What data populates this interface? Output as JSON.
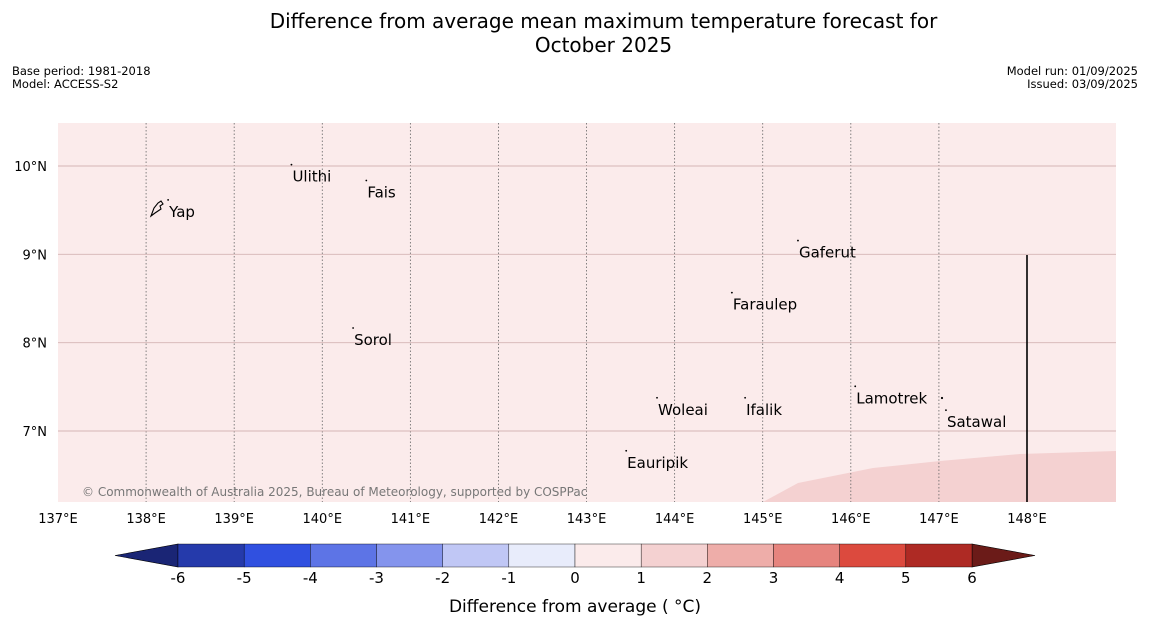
{
  "title_line1": "Difference from average mean maximum temperature forecast for",
  "title_line2": "October 2025",
  "meta_left": {
    "base_period": "Base period: 1981-2018",
    "model": "Model: ACCESS-S2"
  },
  "meta_right": {
    "model_run": "Model run: 01/09/2025",
    "issued": "Issued: 03/09/2025"
  },
  "map": {
    "x_ticks": [
      "137°E",
      "138°E",
      "139°E",
      "140°E",
      "141°E",
      "142°E",
      "143°E",
      "144°E",
      "145°E",
      "146°E",
      "147°E",
      "148°E"
    ],
    "x_tick_values": [
      137,
      138,
      139,
      140,
      141,
      142,
      143,
      144,
      145,
      146,
      147,
      148
    ],
    "y_ticks": [
      "10°N",
      "9°N",
      "8°N",
      "7°N"
    ],
    "y_tick_values": [
      10,
      9,
      8,
      7
    ],
    "lon_range": [
      137,
      149
    ],
    "lat_range": [
      6.2,
      10.5
    ],
    "places": [
      {
        "name": "Yap",
        "lon": 138.25,
        "lat": 9.48
      },
      {
        "name": "Ulithi",
        "lon": 139.65,
        "lat": 9.88
      },
      {
        "name": "Fais",
        "lon": 140.5,
        "lat": 9.7
      },
      {
        "name": "Gaferut",
        "lon": 145.4,
        "lat": 9.02
      },
      {
        "name": "Faraulep",
        "lon": 144.65,
        "lat": 8.43
      },
      {
        "name": "Sorol",
        "lon": 140.35,
        "lat": 8.03
      },
      {
        "name": "Lamotrek",
        "lon": 146.05,
        "lat": 7.37
      },
      {
        "name": "Satawal",
        "lon": 147.08,
        "lat": 7.1
      },
      {
        "name": "Woleai",
        "lon": 143.8,
        "lat": 7.24
      },
      {
        "name": "Ifalik",
        "lon": 144.8,
        "lat": 7.24
      },
      {
        "name": "Eauripik",
        "lon": 143.45,
        "lat": 6.64
      }
    ],
    "background_anomaly_class": "0 to 1",
    "region_anomaly_class": "1 to 2",
    "copyright": "© Commonwealth of Australia 2025, Bureau of Meteorology, supported by COSPPac"
  },
  "colorbar": {
    "label": "Difference from average ( °C)",
    "ticks": [
      "-6",
      "-5",
      "-4",
      "-3",
      "-2",
      "-1",
      "0",
      "1",
      "2",
      "3",
      "4",
      "5",
      "6"
    ],
    "under_color": "#1a2575",
    "over_color": "#6b1b18",
    "bin_colors": [
      "#253aab",
      "#3050e0",
      "#5d74e6",
      "#8494ed",
      "#c0c7f5",
      "#e8ecfb",
      "#fbebeb",
      "#f4d1d1",
      "#eeada9",
      "#e6847e",
      "#dc4a3e",
      "#ae2a24"
    ]
  }
}
